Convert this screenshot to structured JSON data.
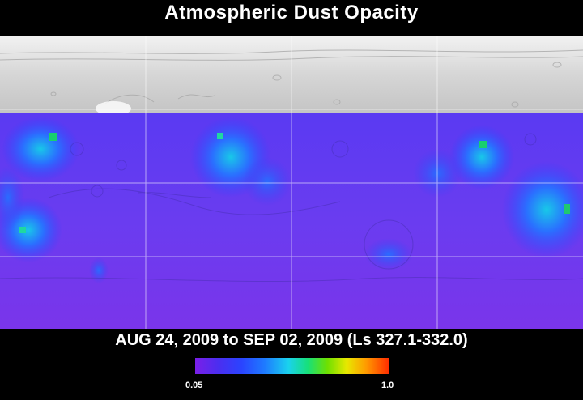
{
  "title": "Atmospheric Dust Opacity",
  "date_range": "AUG 24, 2009 to SEP 02, 2009 (Ls 327.1-332.0)",
  "colorbar": {
    "min_label": "0.05",
    "max_label": "1.0",
    "min_value": 0.05,
    "max_value": 1.0,
    "colors": [
      "#7a1fe8",
      "#2a44ff",
      "#1ad2ee",
      "#17e07a",
      "#e8e800",
      "#ff9a00",
      "#ff2a00"
    ]
  },
  "map": {
    "no_data_region": "north polar band",
    "background_opacity_color": "#6a3cf0"
  }
}
